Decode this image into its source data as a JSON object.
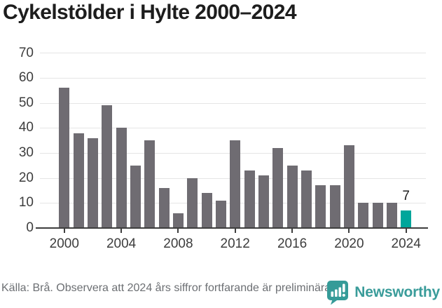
{
  "header": {
    "title": "Cykelstölder i Hylte 2000–2024"
  },
  "chart_data": {
    "type": "bar",
    "title": "Cykelstölder i Hylte 2000–2024",
    "categories": [
      2000,
      2001,
      2002,
      2003,
      2004,
      2005,
      2006,
      2007,
      2008,
      2009,
      2010,
      2011,
      2012,
      2013,
      2014,
      2015,
      2016,
      2017,
      2018,
      2019,
      2020,
      2021,
      2022,
      2023,
      2024
    ],
    "values": [
      56,
      38,
      36,
      49,
      40,
      25,
      35,
      16,
      6,
      20,
      14,
      11,
      35,
      23,
      21,
      32,
      25,
      23,
      17,
      17,
      33,
      10,
      10,
      10,
      7
    ],
    "xlabel": "",
    "ylabel": "",
    "ylim": [
      0,
      70
    ],
    "yticks": [
      0,
      10,
      20,
      30,
      40,
      50,
      60,
      70
    ],
    "xticks": [
      2000,
      2004,
      2008,
      2012,
      2016,
      2020,
      2024
    ],
    "grid": true,
    "legend": false,
    "bar_color": "#6F6C72",
    "highlight_index": 24,
    "highlight_color": "#00A69B",
    "annotation": {
      "index": 24,
      "label": "7"
    }
  },
  "footer": {
    "source_text": "Källa: Brå. Observera att 2024 års siffror fortfarande är preliminära.",
    "logo_text": "Newsworthy",
    "logo_color": "#3A9C9A"
  }
}
